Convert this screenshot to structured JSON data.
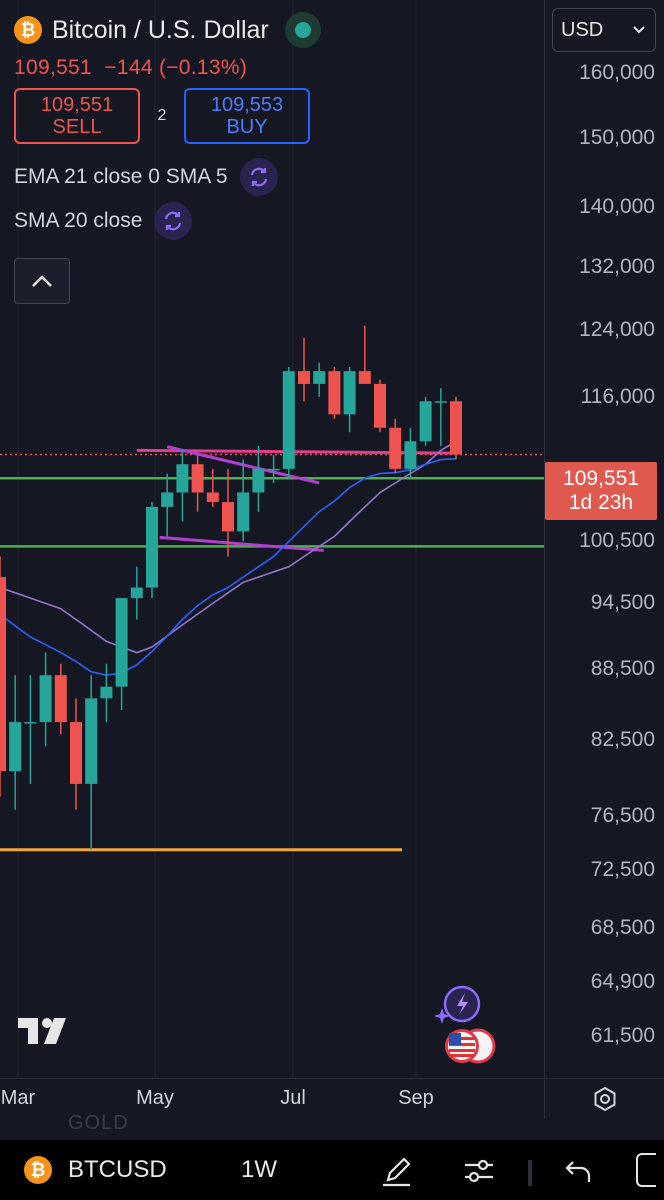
{
  "header": {
    "title": "Bitcoin / U.S. Dollar",
    "last_price": "109,551",
    "change": "−144",
    "change_pct": "(−0.13%)",
    "sell_price": "109,551",
    "sell_label": "SELL",
    "spread": "2",
    "buy_price": "109,553",
    "buy_label": "BUY",
    "indicator1": "EMA 21 close 0 SMA 5",
    "indicator2": "SMA 20 close"
  },
  "currency": {
    "selected": "USD"
  },
  "price_axis": {
    "labels": [
      "160,000",
      "150,000",
      "140,000",
      "132,000",
      "124,000",
      "116,000",
      "100,500",
      "94,500",
      "88,500",
      "82,500",
      "76,500",
      "72,500",
      "68,500",
      "64,900",
      "61,500"
    ]
  },
  "price_tag": {
    "price": "109,551",
    "countdown": "1d 23h"
  },
  "time_axis": {
    "labels": [
      "Mar",
      "May",
      "Jul",
      "Sep"
    ]
  },
  "bottom_bar": {
    "ticker": "BTCUSD",
    "interval": "1W",
    "ghost_text": "GOLD"
  },
  "icons": {
    "coin": "bitcoin-icon",
    "settings": "gear-icon",
    "pen": "pen-icon",
    "sliders": "sliders-icon",
    "undo": "undo-icon"
  },
  "colors": {
    "up": "#26a69a",
    "down": "#ef5350",
    "ema": "#2962ff",
    "sma20": "#9575cd",
    "green_level": "#4caf50",
    "orange_level": "#f0a93b",
    "pink_line": "#e03f8c",
    "purple_line": "#b23fd1"
  },
  "chart_data": {
    "type": "candlestick",
    "scale": "log",
    "interval": "1W",
    "ylim": [
      59000,
      172000
    ],
    "candles": [
      {
        "o": 97000,
        "h": 99000,
        "l": 78000,
        "c": 80000
      },
      {
        "o": 80000,
        "h": 88000,
        "l": 77000,
        "c": 84000
      },
      {
        "o": 84000,
        "h": 88000,
        "l": 79000,
        "c": 84000
      },
      {
        "o": 84000,
        "h": 90000,
        "l": 82000,
        "c": 88000
      },
      {
        "o": 88000,
        "h": 89000,
        "l": 83000,
        "c": 84000
      },
      {
        "o": 84000,
        "h": 86000,
        "l": 77000,
        "c": 79000
      },
      {
        "o": 79000,
        "h": 88000,
        "l": 74000,
        "c": 86000
      },
      {
        "o": 86000,
        "h": 89000,
        "l": 84000,
        "c": 87000
      },
      {
        "o": 87000,
        "h": 95000,
        "l": 85000,
        "c": 95000
      },
      {
        "o": 95000,
        "h": 98000,
        "l": 93000,
        "c": 96000
      },
      {
        "o": 96000,
        "h": 104500,
        "l": 95000,
        "c": 104000
      },
      {
        "o": 104000,
        "h": 107500,
        "l": 101000,
        "c": 105500
      },
      {
        "o": 105500,
        "h": 110000,
        "l": 102500,
        "c": 108500
      },
      {
        "o": 108500,
        "h": 109500,
        "l": 103500,
        "c": 105500
      },
      {
        "o": 105500,
        "h": 108000,
        "l": 104000,
        "c": 104500
      },
      {
        "o": 104500,
        "h": 108000,
        "l": 99000,
        "c": 101500
      },
      {
        "o": 101500,
        "h": 109000,
        "l": 100500,
        "c": 105500
      },
      {
        "o": 105500,
        "h": 110500,
        "l": 103500,
        "c": 108000
      },
      {
        "o": 108000,
        "h": 109500,
        "l": 106500,
        "c": 108000
      },
      {
        "o": 108000,
        "h": 119500,
        "l": 107000,
        "c": 119000
      },
      {
        "o": 119000,
        "h": 123000,
        "l": 115500,
        "c": 117500
      },
      {
        "o": 117500,
        "h": 120000,
        "l": 116000,
        "c": 119000
      },
      {
        "o": 119000,
        "h": 119500,
        "l": 113500,
        "c": 114000
      },
      {
        "o": 114000,
        "h": 119500,
        "l": 112000,
        "c": 119000
      },
      {
        "o": 119000,
        "h": 124500,
        "l": 117500,
        "c": 117500
      },
      {
        "o": 117500,
        "h": 118000,
        "l": 112000,
        "c": 112500
      },
      {
        "o": 112500,
        "h": 113500,
        "l": 107500,
        "c": 108000
      },
      {
        "o": 108000,
        "h": 112500,
        "l": 107000,
        "c": 111000
      },
      {
        "o": 111000,
        "h": 116000,
        "l": 110500,
        "c": 115500
      },
      {
        "o": 115500,
        "h": 117000,
        "l": 110500,
        "c": 115500
      },
      {
        "o": 115500,
        "h": 116000,
        "l": 109000,
        "c": 109551
      }
    ],
    "ema21": [
      93500,
      92400,
      91400,
      90700,
      90000,
      89200,
      88300,
      88000,
      88200,
      88900,
      90100,
      91500,
      93000,
      94300,
      95300,
      96000,
      97000,
      98000,
      99000,
      100500,
      102000,
      103500,
      104600,
      106000,
      107000,
      107500,
      107600,
      107900,
      108500,
      109000,
      109100
    ],
    "sma20": [
      96000,
      95500,
      95000,
      94500,
      94000,
      93000,
      92000,
      91000,
      90500,
      90000,
      90500,
      91500,
      92500,
      93500,
      94500,
      95500,
      96500,
      97000,
      97500,
      98000,
      99000,
      100000,
      101000,
      102500,
      104000,
      105500,
      106500,
      107500,
      108500,
      110000,
      111000
    ],
    "horizontal_levels": [
      {
        "price": 107000,
        "color": "#4caf50"
      },
      {
        "price": 100000,
        "color": "#4caf50"
      },
      {
        "price": 74000,
        "color": "#f0a93b"
      },
      {
        "price": 109551,
        "color": "#ef5350",
        "style": "dotted"
      }
    ]
  }
}
